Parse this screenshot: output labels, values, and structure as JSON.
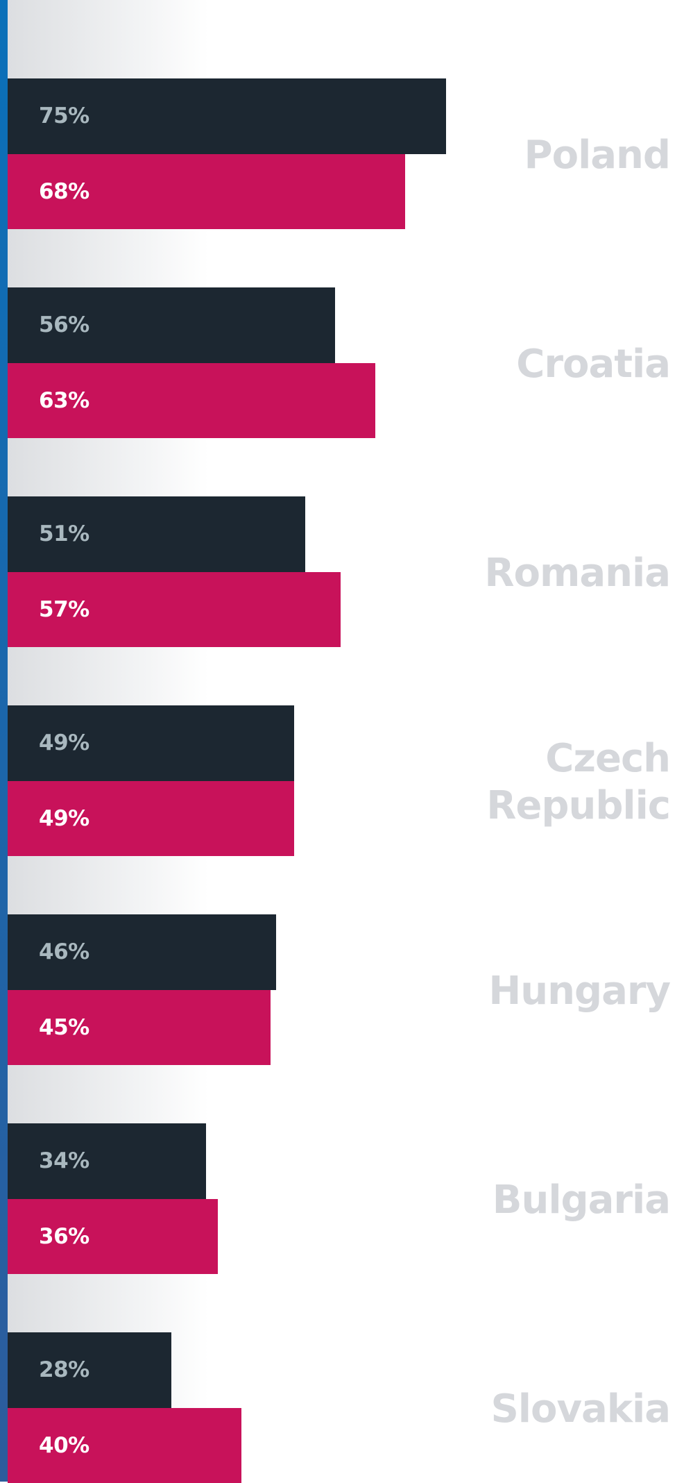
{
  "chart_data": {
    "type": "bar",
    "orientation": "horizontal",
    "categories": [
      "Poland",
      "Croatia",
      "Romania",
      "Czech Republic",
      "Hungary",
      "Bulgaria",
      "Slovakia"
    ],
    "series": [
      {
        "color": "#1c2731",
        "values": [
          75,
          56,
          51,
          49,
          46,
          34,
          28
        ],
        "value_labels": [
          "75%",
          "56%",
          "51%",
          "49%",
          "46%",
          "34%",
          "28%"
        ]
      },
      {
        "color": "#c8125a",
        "values": [
          68,
          63,
          57,
          49,
          45,
          36,
          40
        ],
        "value_labels": [
          "68%",
          "63%",
          "57%",
          "49%",
          "45%",
          "36%",
          "40%"
        ]
      }
    ],
    "xlim": [
      0,
      100
    ]
  }
}
